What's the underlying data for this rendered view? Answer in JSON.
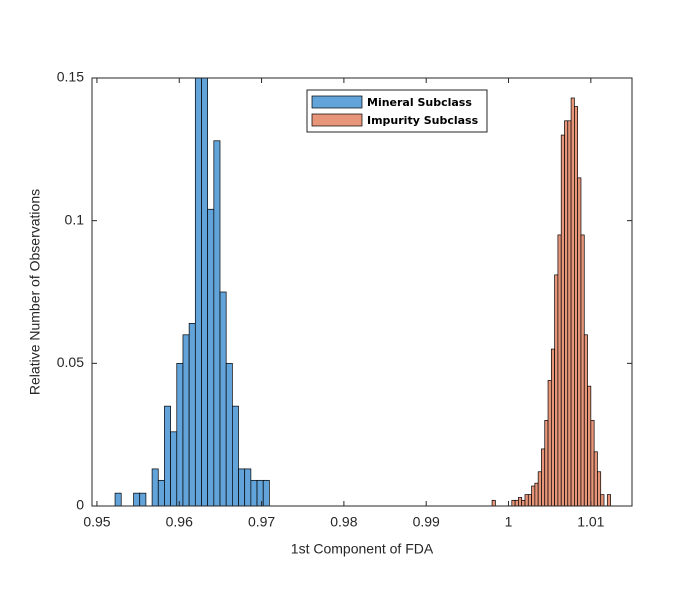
{
  "chart_data": {
    "type": "histogram",
    "xlabel": "1st Component of FDA",
    "ylabel": "Relative Number of Observations",
    "xlim": [
      0.9494,
      1.015
    ],
    "ylim": [
      0,
      0.15
    ],
    "xticks": [
      0.95,
      0.96,
      0.97,
      0.98,
      0.99,
      1,
      1.01
    ],
    "yticks": [
      0,
      0.05,
      0.1,
      0.15
    ],
    "legend": "north",
    "series": [
      {
        "name": "Mineral Subclass",
        "color": "#62a3d9",
        "bins": [
          0.9522,
          0.95295,
          0.9537,
          0.95445,
          0.9552,
          0.95595,
          0.9567,
          0.95745,
          0.9582,
          0.95895,
          0.9597,
          0.96045,
          0.9612,
          0.96195,
          0.9627,
          0.96345,
          0.9642,
          0.96495,
          0.9657,
          0.96645,
          0.9672,
          0.96795,
          0.9687,
          0.96945,
          0.9702,
          0.97095
        ],
        "values": [
          0.0045,
          0,
          0,
          0.0045,
          0.0045,
          0,
          0.013,
          0.009,
          0.035,
          0.026,
          0.05,
          0.06,
          0.064,
          0.15,
          0.15,
          0.104,
          0.128,
          0.075,
          0.05,
          0.035,
          0.013,
          0.013,
          0.009,
          0.009,
          0.009
        ]
      },
      {
        "name": "Impurity Subclass",
        "color": "#e8967a",
        "bins": [
          0.998,
          0.9984,
          0.9988,
          0.9992,
          0.9996,
          1.0,
          1.0004,
          1.0008,
          1.0012,
          1.0016,
          1.002,
          1.0024,
          1.0028,
          1.0032,
          1.0036,
          1.004,
          1.0044,
          1.0048,
          1.0052,
          1.0056,
          1.006,
          1.0064,
          1.0068,
          1.0072,
          1.0076,
          1.008,
          1.0084,
          1.0088,
          1.0092,
          1.0096,
          1.01,
          1.0104,
          1.0108,
          1.0112,
          1.0116,
          1.012,
          1.0124
        ],
        "values": [
          0.002,
          0,
          0,
          0,
          0,
          0,
          0.002,
          0.002,
          0.003,
          0.002,
          0.004,
          0.004,
          0.007,
          0.008,
          0.012,
          0.02,
          0.03,
          0.044,
          0.055,
          0.081,
          0.095,
          0.13,
          0.135,
          0.135,
          0.143,
          0.14,
          0.115,
          0.095,
          0.06,
          0.042,
          0.03,
          0.019,
          0.012,
          0.004,
          0,
          0.004
        ]
      }
    ]
  }
}
